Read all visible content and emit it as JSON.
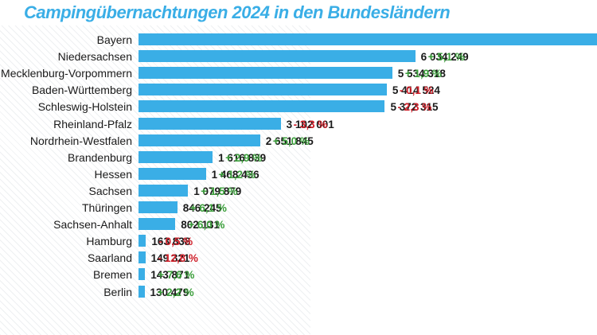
{
  "title": "Campingübernachtungen 2024 in den Bundesländern",
  "colors": {
    "bar": "#3aaee6",
    "positive": "#3a9e3a",
    "negative": "#d0202a",
    "title": "#3aaee6"
  },
  "chart_data": {
    "type": "bar",
    "orientation": "horizontal",
    "title": "Campingübernachtungen 2024 in den Bundesländern",
    "xlim": [
      0,
      10000000
    ],
    "categories": [
      "Bayern",
      "Niedersachsen",
      "Mecklenburg-Vorpommern",
      "Baden-Württemberg",
      "Schleswig-Holstein",
      "Rheinland-Pfalz",
      "Nordrhein-Westfalen",
      "Brandenburg",
      "Hessen",
      "Sachsen",
      "Thüringen",
      "Sachsen-Anhalt",
      "Hamburg",
      "Saarland",
      "Bremen",
      "Berlin"
    ],
    "values": [
      10000000,
      6034249,
      5534318,
      5414524,
      5372315,
      3102001,
      2651845,
      1616839,
      1468436,
      1079879,
      846245,
      802131,
      163838,
      149321,
      143871,
      130479
    ],
    "value_labels": [
      "",
      "6 034 249",
      "5 534 318",
      "5 414 524",
      "5 372 315",
      "3 102 001",
      "2 651 845",
      "1 616 839",
      "1 468 436",
      "1 079 879",
      "846 245",
      "802 131",
      "163 838",
      "149 321",
      "143 871",
      "130 479"
    ],
    "change_labels": [
      "",
      "+ 5,1 %",
      "+ 1,9 %",
      "- 0,1 %",
      "- 2,3 %",
      "- 3,3 %",
      "+ 5,0 %",
      "+ 2,9 %",
      "+ 1,2 %",
      "+ 1,5 %",
      "+ 6,1 %",
      "+ 6,0 %",
      "- 0,5 %",
      "- 12,8 %",
      "+ 7,6 %",
      "+ 2,2 %"
    ],
    "change_sign": [
      0,
      1,
      1,
      -1,
      -1,
      -1,
      1,
      1,
      1,
      1,
      1,
      1,
      -1,
      -1,
      1,
      1
    ],
    "grid": false,
    "legend": "none"
  }
}
